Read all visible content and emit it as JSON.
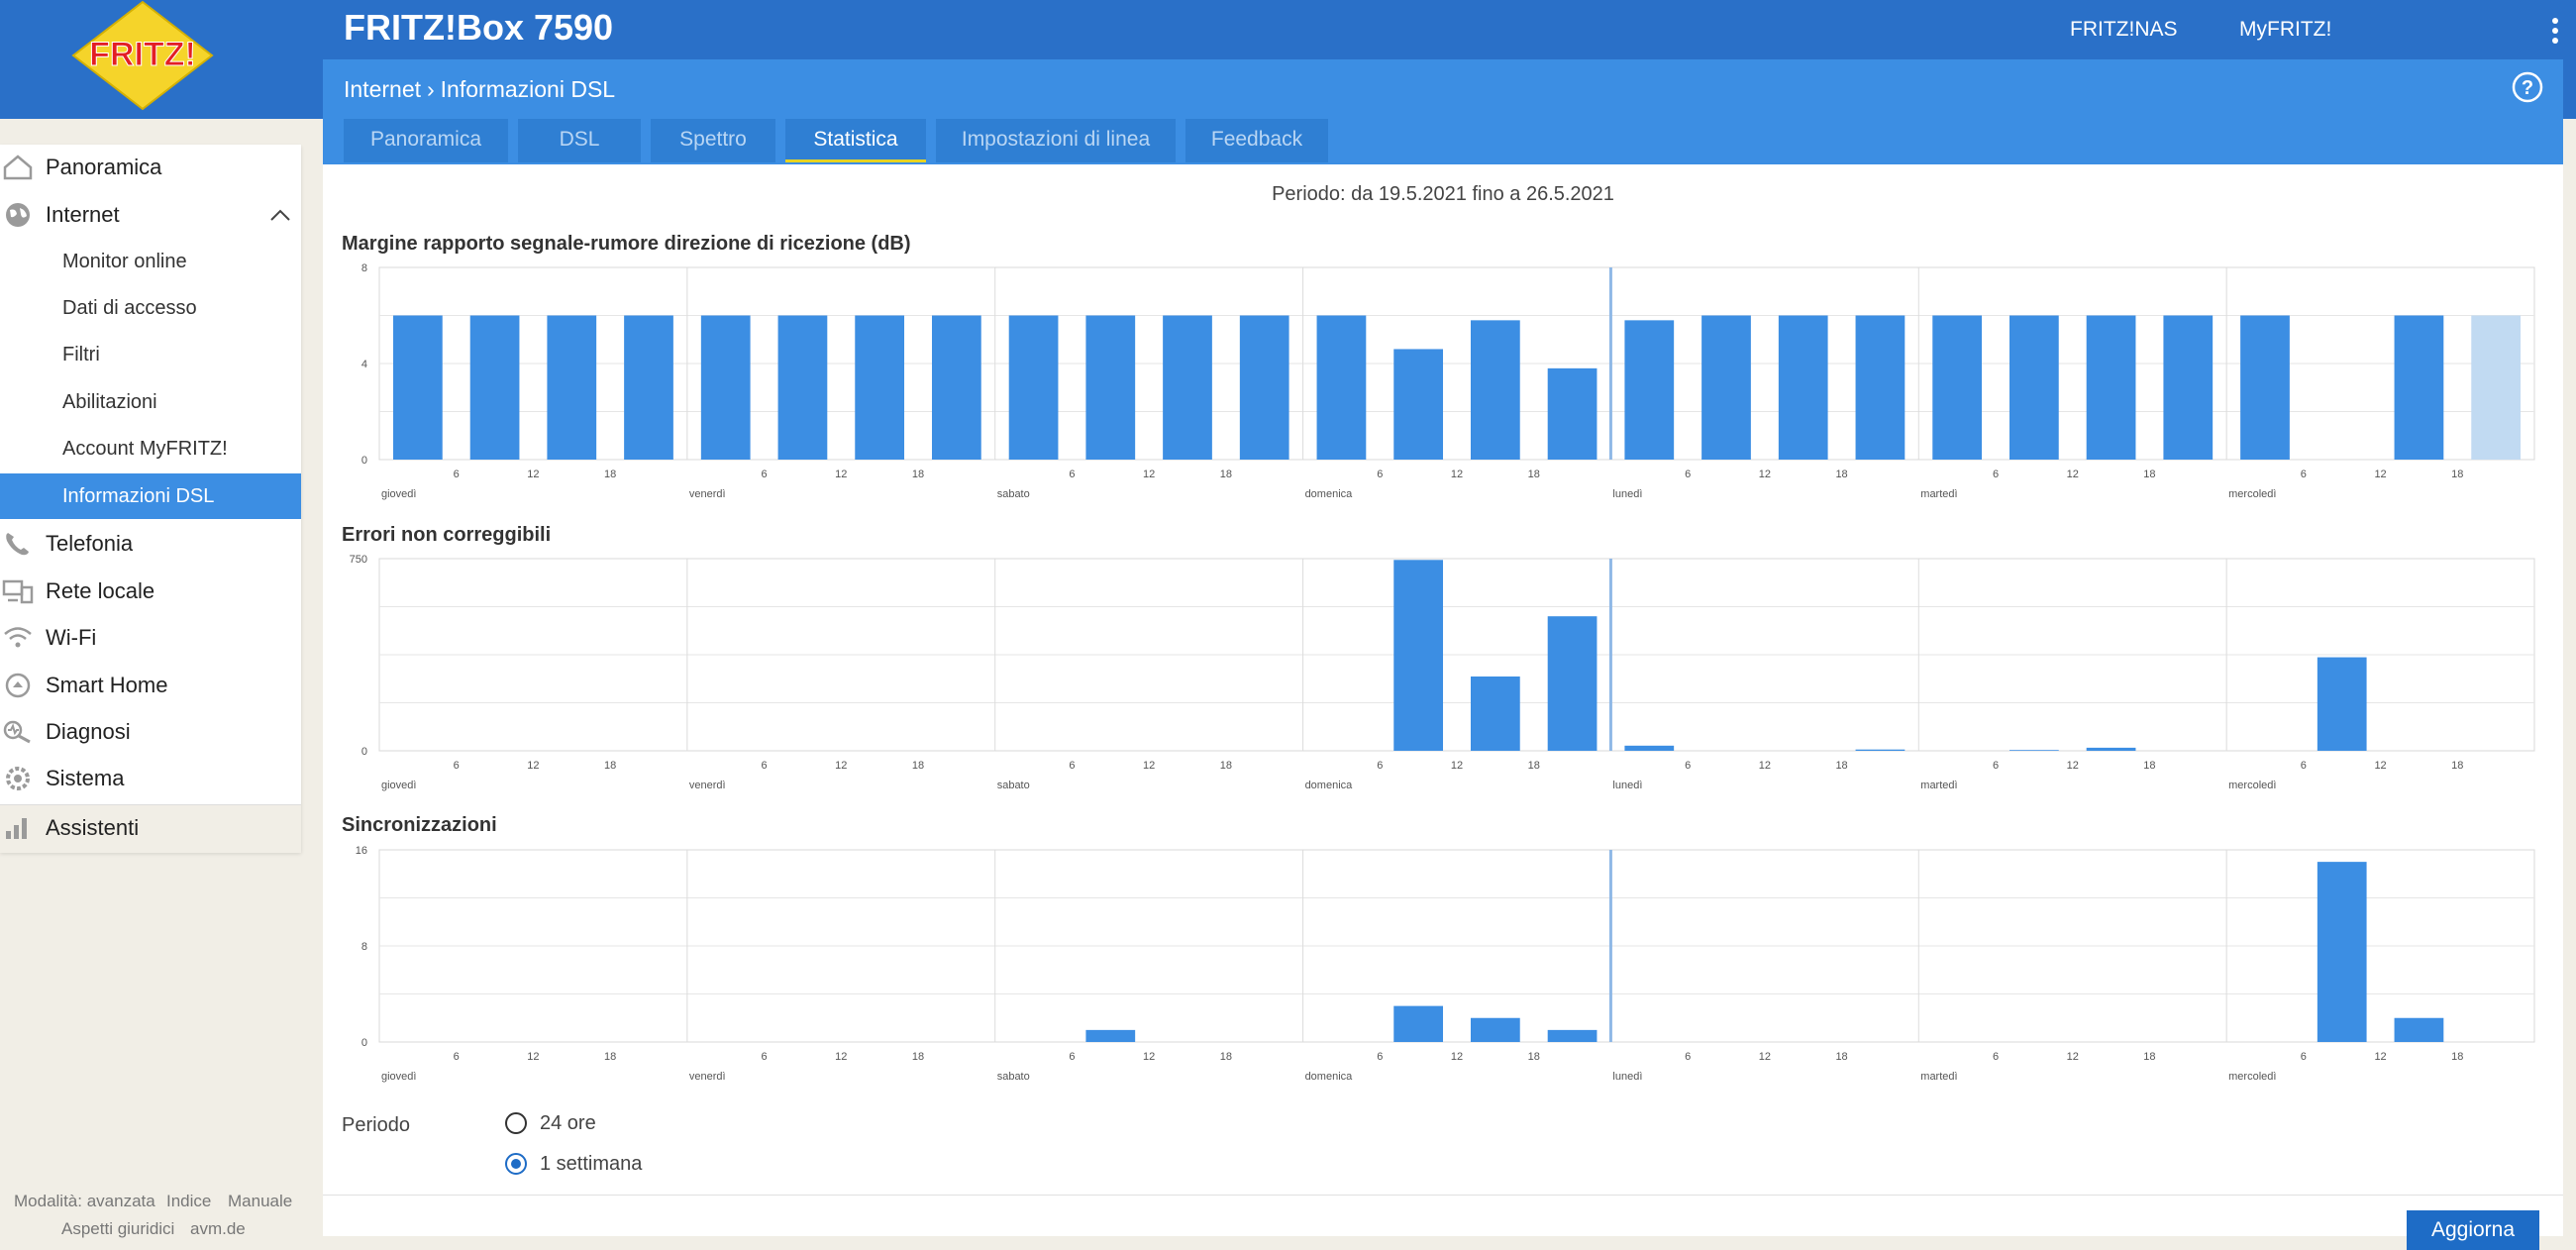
{
  "header": {
    "product_title": "FRITZ!Box 7590",
    "links": [
      "FRITZ!NAS",
      "MyFRITZ!"
    ],
    "logo_text": "FRITZ!"
  },
  "breadcrumb": {
    "parent": "Internet",
    "current": "Informazioni DSL"
  },
  "tabs": [
    {
      "label": "Panoramica",
      "active": false
    },
    {
      "label": "DSL",
      "active": false
    },
    {
      "label": "Spettro",
      "active": false
    },
    {
      "label": "Statistica",
      "active": true
    },
    {
      "label": "Impostazioni di linea",
      "active": false
    },
    {
      "label": "Feedback",
      "active": false
    }
  ],
  "period_title": "Periodo: da 19.5.2021 fino a 26.5.2021",
  "sidebar": {
    "items": [
      {
        "label": "Panoramica",
        "icon": "home-icon"
      },
      {
        "label": "Internet",
        "icon": "globe-icon",
        "expanded": true
      },
      {
        "label": "Telefonia",
        "icon": "phone-icon"
      },
      {
        "label": "Rete locale",
        "icon": "network-icon"
      },
      {
        "label": "Wi-Fi",
        "icon": "wifi-icon"
      },
      {
        "label": "Smart Home",
        "icon": "smart-home-icon"
      },
      {
        "label": "Diagnosi",
        "icon": "diagnosis-icon"
      },
      {
        "label": "Sistema",
        "icon": "system-icon"
      },
      {
        "label": "Assistenti",
        "icon": "assistant-icon"
      }
    ],
    "internet_subitems": [
      {
        "label": "Monitor online",
        "active": false
      },
      {
        "label": "Dati di accesso",
        "active": false
      },
      {
        "label": "Filtri",
        "active": false
      },
      {
        "label": "Abilitazioni",
        "active": false
      },
      {
        "label": "Account MyFRITZ!",
        "active": false
      },
      {
        "label": "Informazioni DSL",
        "active": true
      }
    ]
  },
  "footer": {
    "links_row1": [
      "Modalità: avanzata",
      "Indice",
      "Manuale"
    ],
    "links_row2": [
      "Aspetti giuridici",
      "avm.de"
    ]
  },
  "period_selector": {
    "label": "Periodo",
    "options": [
      {
        "label": "24 ore",
        "checked": false
      },
      {
        "label": "1 settimana",
        "checked": true
      }
    ]
  },
  "update_button": "Aggiorna",
  "colors": {
    "bar": "#3c8ee3",
    "bar_current": "#c1daf2",
    "header": "#2a70c8",
    "accent": "#3c8ee3"
  },
  "chart_data": [
    {
      "type": "bar",
      "title": "Margine rapporto segnale-rumore direzione di ricezione (dB)",
      "ylim": [
        0,
        8
      ],
      "yticks": [
        "8",
        "4",
        "0"
      ],
      "days": [
        "giovedì",
        "venerdì",
        "sabato",
        "domenica",
        "lunedì",
        "martedì",
        "mercoledì"
      ],
      "hour_ticks": [
        "6",
        "12",
        "18"
      ],
      "interval_hours": 6,
      "values": [
        6,
        6,
        6,
        6,
        6,
        6,
        6,
        6,
        6,
        6,
        6,
        6,
        6,
        4.6,
        5.8,
        3.8,
        5.8,
        6,
        6,
        6,
        6,
        6,
        6,
        6,
        6,
        0,
        6,
        6
      ],
      "current_index": 27,
      "marker_day": 4
    },
    {
      "type": "bar",
      "title": "Errori non correggibili",
      "ylim": [
        0,
        750
      ],
      "yticks": [
        "750",
        "0"
      ],
      "days": [
        "giovedì",
        "venerdì",
        "sabato",
        "domenica",
        "lunedì",
        "martedì",
        "mercoledì"
      ],
      "hour_ticks": [
        "6",
        "12",
        "18"
      ],
      "interval_hours": 6,
      "values": [
        0,
        0,
        0,
        0,
        0,
        0,
        0,
        0,
        0,
        0,
        0,
        0,
        0,
        745,
        290,
        525,
        20,
        0,
        0,
        5,
        0,
        3,
        12,
        0,
        0,
        365,
        0,
        0
      ],
      "marker_day": 4
    },
    {
      "type": "bar",
      "title": "Sincronizzazioni",
      "ylim": [
        0,
        16
      ],
      "yticks": [
        "16",
        "8",
        "0"
      ],
      "days": [
        "giovedì",
        "venerdì",
        "sabato",
        "domenica",
        "lunedì",
        "martedì",
        "mercoledì"
      ],
      "hour_ticks": [
        "6",
        "12",
        "18"
      ],
      "interval_hours": 6,
      "values": [
        0,
        0,
        0,
        0,
        0,
        0,
        0,
        0,
        0,
        1,
        0,
        0,
        0,
        3,
        2,
        1,
        0,
        0,
        0,
        0,
        0,
        0,
        0,
        0,
        0,
        15,
        2,
        0
      ],
      "marker_day": 4
    }
  ]
}
